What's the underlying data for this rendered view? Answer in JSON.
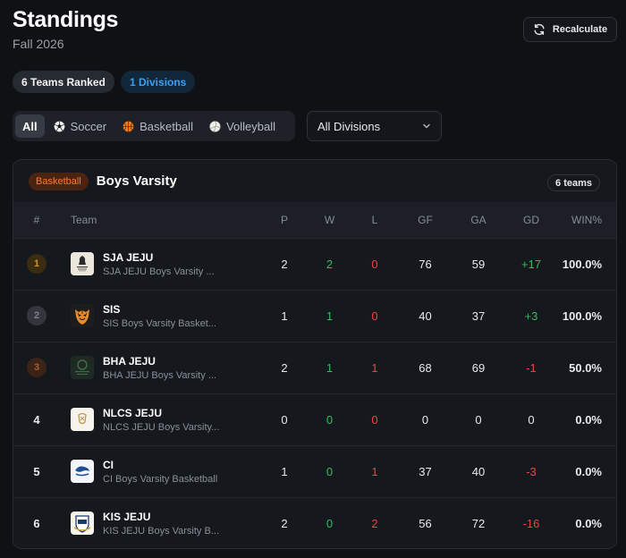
{
  "header": {
    "title": "Standings",
    "subtitle": "Fall 2026",
    "recalculate_label": "Recalculate"
  },
  "pills": {
    "teams_ranked": "6 Teams Ranked",
    "divisions": "1 Divisions"
  },
  "sport_tabs": [
    {
      "label": "All",
      "icon": "none",
      "active": true
    },
    {
      "label": "Soccer",
      "icon": "soccer-ball-icon",
      "active": false
    },
    {
      "label": "Basketball",
      "icon": "basketball-icon",
      "active": false
    },
    {
      "label": "Volleyball",
      "icon": "volleyball-icon",
      "active": false
    }
  ],
  "division_select": {
    "value": "All Divisions"
  },
  "card": {
    "sport_badge": "Basketball",
    "title": "Boys Varsity",
    "count_badge": "6 teams"
  },
  "table": {
    "columns": [
      "#",
      "Team",
      "P",
      "W",
      "L",
      "GF",
      "GA",
      "GD",
      "WIN%"
    ],
    "rows": [
      {
        "rank": "1",
        "name": "SJA JEJU",
        "sub": "SJA JEJU Boys Varsity ...",
        "p": "2",
        "w": "2",
        "l": "0",
        "gf": "76",
        "ga": "59",
        "gd": "+17",
        "win": "100.0%"
      },
      {
        "rank": "2",
        "name": "SIS",
        "sub": "SIS Boys Varsity Basket...",
        "p": "1",
        "w": "1",
        "l": "0",
        "gf": "40",
        "ga": "37",
        "gd": "+3",
        "win": "100.0%"
      },
      {
        "rank": "3",
        "name": "BHA JEJU",
        "sub": "BHA JEJU Boys Varsity ...",
        "p": "2",
        "w": "1",
        "l": "1",
        "gf": "68",
        "ga": "69",
        "gd": "-1",
        "win": "50.0%"
      },
      {
        "rank": "4",
        "name": "NLCS JEJU",
        "sub": "NLCS JEJU Boys Varsity...",
        "p": "0",
        "w": "0",
        "l": "0",
        "gf": "0",
        "ga": "0",
        "gd": "0",
        "win": "0.0%"
      },
      {
        "rank": "5",
        "name": "CI",
        "sub": "CI Boys Varsity Basketball",
        "p": "1",
        "w": "0",
        "l": "1",
        "gf": "37",
        "ga": "40",
        "gd": "-3",
        "win": "0.0%"
      },
      {
        "rank": "6",
        "name": "KIS JEJU",
        "sub": "KIS JEJU Boys Varsity B...",
        "p": "2",
        "w": "0",
        "l": "2",
        "gf": "56",
        "ga": "72",
        "gd": "-16",
        "win": "0.0%"
      }
    ]
  },
  "colors": {
    "background": "#0f1115",
    "accent_blue": "#3b9ff5",
    "basketball_orange": "#ff7a2a",
    "positive_green": "#2fbf5c",
    "negative_red": "#ef4444",
    "gold": "#c9971f",
    "silver": "#5a5f68",
    "bronze": "#b5582a"
  }
}
